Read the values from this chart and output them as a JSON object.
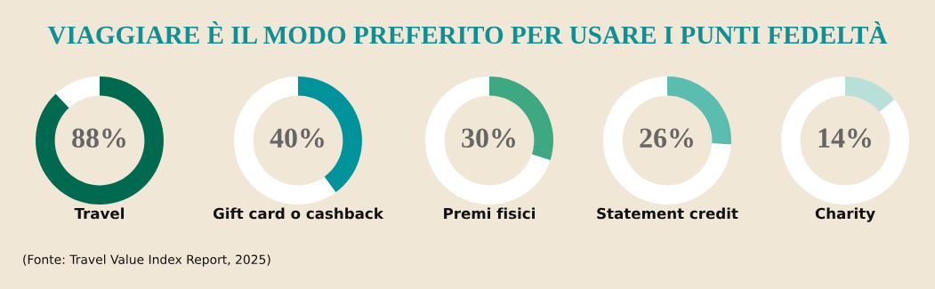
{
  "chart_data": [
    {
      "type": "donut",
      "title": "VIAGGIARE È IL MODO PREFERITO PER USARE I PUNTI FEDELTÀ",
      "annotations": [
        "88%",
        "(Fonte: Travel Value Index Report, 2025)"
      ],
      "xlabel": "Travel",
      "categories": [
        null,
        null
      ],
      "values": [
        88,
        12
      ],
      "colors": [
        "#006a50",
        "#ffffff"
      ]
    },
    {
      "type": "donut",
      "annotations": [
        "40%"
      ],
      "xlabel": "Gift card o cashback",
      "categories": [
        null,
        null
      ],
      "values": [
        40,
        60
      ],
      "colors": [
        "#00939c",
        "#ffffff"
      ]
    },
    {
      "type": "donut",
      "annotations": [
        "30%"
      ],
      "xlabel": "Premi fisici",
      "categories": [
        null,
        null
      ],
      "values": [
        30,
        70
      ],
      "colors": [
        "#3ea882",
        "#ffffff"
      ]
    },
    {
      "type": "donut",
      "annotations": [
        "26%"
      ],
      "xlabel": "Statement credit",
      "categories": [
        null,
        null
      ],
      "values": [
        26,
        74
      ],
      "colors": [
        "#5bbcb0",
        "#ffffff"
      ]
    },
    {
      "type": "donut",
      "annotations": [
        "14%"
      ],
      "xlabel": "Charity",
      "categories": [
        null,
        null
      ],
      "values": [
        14,
        86
      ],
      "colors": [
        "#b8e0d8",
        "#ffffff"
      ]
    }
  ]
}
